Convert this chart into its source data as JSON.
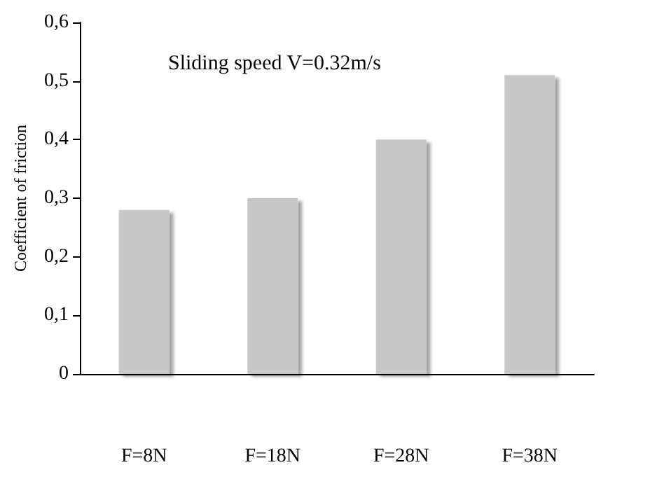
{
  "chart_data": {
    "type": "bar",
    "categories": [
      "F=8N",
      "F=18N",
      "F=28N",
      "F=38N"
    ],
    "values": [
      0.28,
      0.3,
      0.4,
      0.51
    ],
    "color": "#c8c8c8",
    "ylabel": "Coefficient of friction",
    "ylim": [
      0,
      0.6
    ],
    "yticks": [
      {
        "value": 0,
        "label": "0"
      },
      {
        "value": 0.1,
        "label": "0,1"
      },
      {
        "value": 0.2,
        "label": "0,2"
      },
      {
        "value": 0.3,
        "label": "0,3"
      },
      {
        "value": 0.4,
        "label": "0,4"
      },
      {
        "value": 0.5,
        "label": "0,5"
      },
      {
        "value": 0.6,
        "label": "0,6"
      }
    ],
    "annotations": [
      "Sliding speed V=0.32m/s"
    ],
    "grid": false
  }
}
